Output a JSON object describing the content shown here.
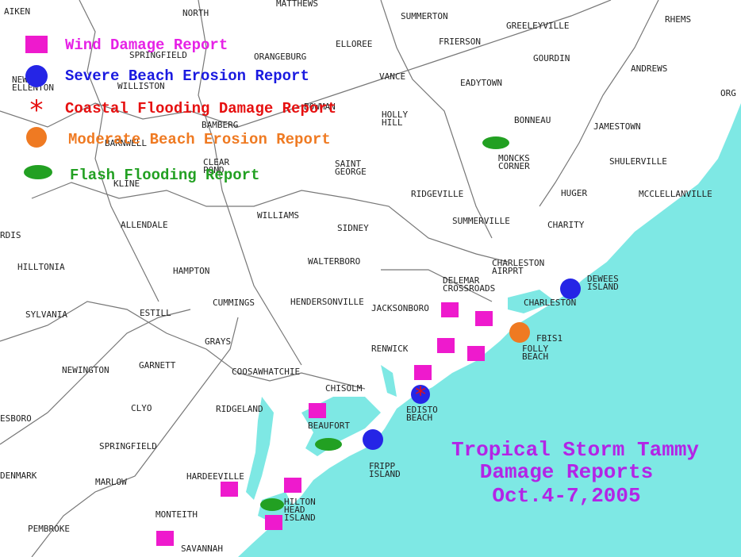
{
  "legend": [
    "Wind Damage Report",
    "Severe Beach Erosion Report",
    "Coastal Flooding Damage Report",
    "Moderate Beach Erosion Report",
    "Flash Flooding Report"
  ],
  "title": [
    "Tropical Storm Tammy",
    "Damage Reports",
    "Oct.4-7,2005"
  ],
  "places": [
    [
      "AIKEN"
    ],
    [
      "NORTH"
    ],
    [
      "MATTHEWS"
    ],
    [
      "SUMMERTON"
    ],
    [
      "RHEMS"
    ],
    [
      "GREELEYVILLE"
    ],
    [
      "ELLOREE"
    ],
    [
      "FRIERSON"
    ],
    [
      "SPRINGFIELD"
    ],
    [
      "ORANGEBURG"
    ],
    [
      "GOURDIN"
    ],
    [
      "ANDREWS"
    ],
    [
      "NEW",
      "ELLENTON"
    ],
    [
      "WILLISTON"
    ],
    [
      "VANCE"
    ],
    [
      "EADYTOWN"
    ],
    [
      "ORG"
    ],
    [
      "BOWMAN"
    ],
    [
      "HOLLY",
      "HILL"
    ],
    [
      "BAMBERG"
    ],
    [
      "BARNWELL"
    ],
    [
      "BONNEAU"
    ],
    [
      "JAMESTOWN"
    ],
    [
      "MONCKS",
      "CORNER"
    ],
    [
      "CLEAR",
      "POND"
    ],
    [
      "SAINT",
      "GEORGE"
    ],
    [
      "SHULERVILLE"
    ],
    [
      "KLINE"
    ],
    [
      "RIDGEVILLE"
    ],
    [
      "HUGER"
    ],
    [
      "MCCLELLANVILLE"
    ],
    [
      "WILLIAMS"
    ],
    [
      "SUMMERVILLE"
    ],
    [
      "CHARITY"
    ],
    [
      "ALLENDALE"
    ],
    [
      "SIDNEY"
    ],
    [
      "RDIS"
    ],
    [
      "WALTERBORO"
    ],
    [
      "CHARLESTON",
      "AIRPRT"
    ],
    [
      "HILLTONIA"
    ],
    [
      "HAMPTON"
    ],
    [
      "DELEMAR",
      "CROSSROADS"
    ],
    [
      "DEWEES",
      "ISLAND"
    ],
    [
      "CUMMINGS"
    ],
    [
      "HENDERSONVILLE"
    ],
    [
      "JACKSONBORO"
    ],
    [
      "CHARLESTON"
    ],
    [
      "SYLVANIA"
    ],
    [
      "ESTILL"
    ],
    [
      "FBIS1"
    ],
    [
      "FOLLY",
      "BEACH"
    ],
    [
      "GRAYS"
    ],
    [
      "RENWICK"
    ],
    [
      "GARNETT"
    ],
    [
      "NEWINGTON"
    ],
    [
      "COOSAWHATCHIE"
    ],
    [
      "CHISOLM"
    ],
    [
      "EDISTO",
      "BEACH"
    ],
    [
      "CLYO"
    ],
    [
      "RIDGELAND"
    ],
    [
      "ESBORO"
    ],
    [
      "BEAUFORT"
    ],
    [
      "SPRINGFIELD"
    ],
    [
      "FRIPP",
      "ISLAND"
    ],
    [
      "DENMARK"
    ],
    [
      "HARDEEVILLE"
    ],
    [
      "MARLOW"
    ],
    [
      "HILTON",
      "HEAD",
      "ISLAND"
    ],
    [
      "MONTEITH"
    ],
    [
      "PEMBROKE"
    ],
    [
      "SAVANNAH"
    ]
  ]
}
